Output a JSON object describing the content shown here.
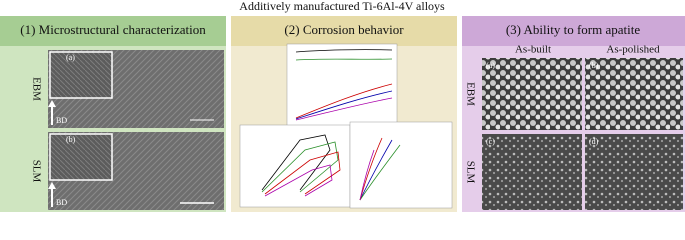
{
  "title": "Additively manufactured Ti-6Al-4V alloys",
  "panels": [
    {
      "heading": "(1) Microstructural characterization",
      "rows": [
        {
          "label": "EBM",
          "image_label": "(a)",
          "arrow_label": "BD"
        },
        {
          "label": "SLM",
          "image_label": "(b)",
          "arrow_label": "BD"
        }
      ]
    },
    {
      "heading": "(2) Corrosion behavior"
    },
    {
      "heading": "(3) Ability to form apatite",
      "columns": [
        "As-built",
        "As-polished"
      ],
      "rows": [
        "EBM",
        "SLM"
      ],
      "image_labels": [
        "(a)",
        "(b)",
        "(c)",
        "(d)"
      ]
    }
  ]
}
